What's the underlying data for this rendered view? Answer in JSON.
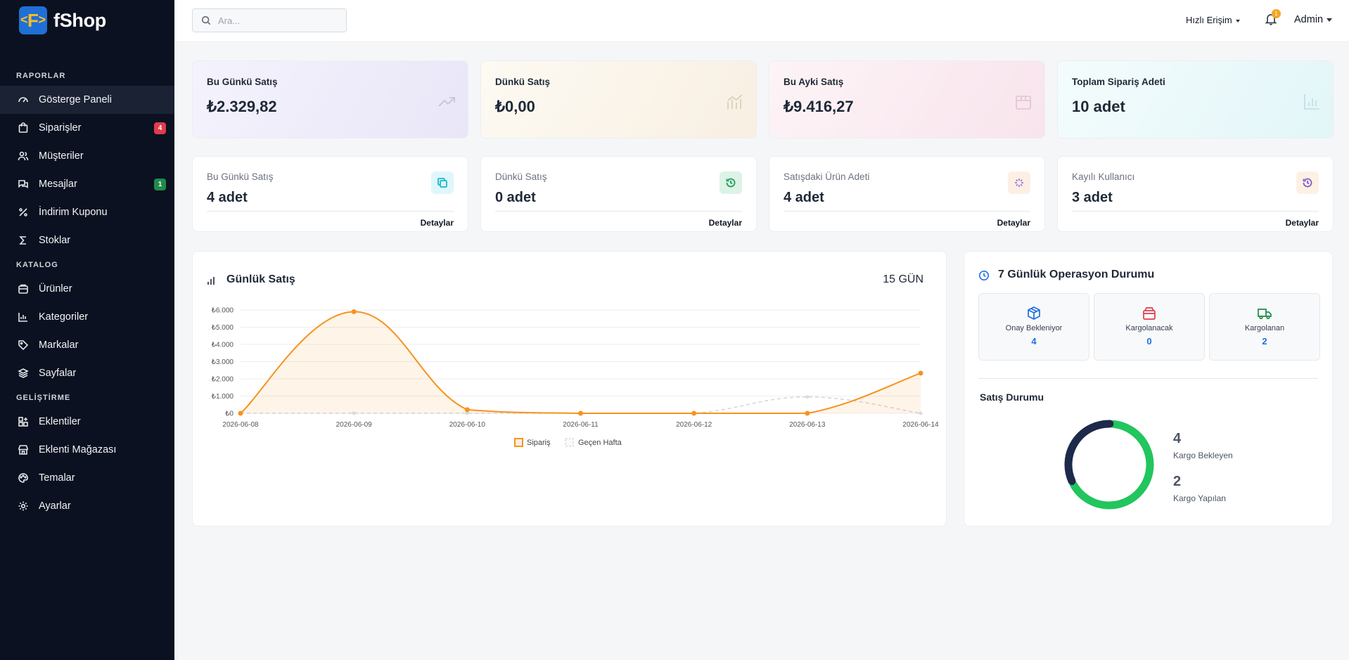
{
  "brand": {
    "name": "fShop",
    "logo_letter": "F"
  },
  "sidebar": {
    "sections": [
      {
        "label": "RAPORLAR"
      },
      {
        "label": "KATALOG"
      },
      {
        "label": "GELİŞTİRME"
      }
    ],
    "items": [
      {
        "label": "Gösterge Paneli",
        "icon": "dashboard-icon",
        "active": true
      },
      {
        "label": "Siparişler",
        "icon": "shopping-bag-icon",
        "badge": "4",
        "badge_color": "#e03b4d"
      },
      {
        "label": "Müşteriler",
        "icon": "users-icon"
      },
      {
        "label": "Mesajlar",
        "icon": "messages-icon",
        "badge": "1",
        "badge_color": "#1f8a4c"
      },
      {
        "label": "İndirim Kuponu",
        "icon": "percent-icon"
      },
      {
        "label": "Stoklar",
        "icon": "sigma-icon"
      },
      {
        "label": "Ürünler",
        "icon": "box-icon"
      },
      {
        "label": "Kategoriler",
        "icon": "bar-chart-icon"
      },
      {
        "label": "Markalar",
        "icon": "tag-icon"
      },
      {
        "label": "Sayfalar",
        "icon": "layers-icon"
      },
      {
        "label": "Eklentiler",
        "icon": "grid-plus-icon"
      },
      {
        "label": "Eklenti Mağazası",
        "icon": "store-icon"
      },
      {
        "label": "Temalar",
        "icon": "palette-icon"
      },
      {
        "label": "Ayarlar",
        "icon": "gear-icon"
      }
    ]
  },
  "topbar": {
    "search_placeholder": "Ara...",
    "quick_access": "Hızlı Erişim",
    "notification_count": "1",
    "user": "Admin"
  },
  "summary_cards": [
    {
      "label": "Bu Günkü Satış",
      "value": "₺2.329,82",
      "icon": "trend-up-icon"
    },
    {
      "label": "Dünkü Satış",
      "value": "₺0,00",
      "icon": "chart-line-icon"
    },
    {
      "label": "Bu Ayki Satış",
      "value": "₺9.416,27",
      "icon": "package-icon"
    },
    {
      "label": "Toplam Sipariş Adeti",
      "value": "10 adet",
      "icon": "bar-chart-icon"
    }
  ],
  "count_cards": [
    {
      "label": "Bu Günkü Satış",
      "value": "4 adet",
      "link": "Detaylar",
      "icon": "copy-icon"
    },
    {
      "label": "Dünkü Satış",
      "value": "0 adet",
      "link": "Detaylar",
      "icon": "history-icon"
    },
    {
      "label": "Satışdaki Ürün Adeti",
      "value": "4 adet",
      "link": "Detaylar",
      "icon": "loader-icon"
    },
    {
      "label": "Kayılı Kullanıcı",
      "value": "3 adet",
      "link": "Detaylar",
      "icon": "history-icon"
    }
  ],
  "daily_chart": {
    "title": "Günlük Satış",
    "range": "15 GÜN"
  },
  "chart_data": {
    "type": "area",
    "x": [
      "2026-06-08",
      "2026-06-09",
      "2026-06-10",
      "2026-06-11",
      "2026-06-12",
      "2026-06-13",
      "2026-06-14"
    ],
    "y_ticks": [
      "₺0",
      "₺1.000",
      "₺2.000",
      "₺3.000",
      "₺4.000",
      "₺5.000",
      "₺6.000"
    ],
    "ylim": [
      0,
      6000
    ],
    "series": [
      {
        "name": "Sipariş",
        "color": "#f7931e",
        "values": [
          0,
          5900,
          210,
          0,
          0,
          0,
          2330
        ]
      },
      {
        "name": "Geçen Hafta",
        "color": "#d1d5db",
        "values": [
          0,
          0,
          0,
          0,
          0,
          950,
          0
        ]
      }
    ],
    "legend": "bottom"
  },
  "operations": {
    "title": "7 Günlük Operasyon Durumu",
    "boxes": [
      {
        "label": "Onay Bekleniyor",
        "value": "4",
        "icon": "cube-icon",
        "color": "#1d6fe0"
      },
      {
        "label": "Kargolanacak",
        "value": "0",
        "icon": "package-icon",
        "color": "#e03b4d"
      },
      {
        "label": "Kargolanan",
        "value": "2",
        "icon": "truck-icon",
        "color": "#1f8a4c"
      }
    ]
  },
  "sales_status": {
    "title": "Satış Durumu",
    "items": [
      {
        "value": "4",
        "label": "Kargo Bekleyen",
        "color": "#22c55e"
      },
      {
        "value": "2",
        "label": "Kargo Yapılan",
        "color": "#1e2a4a"
      }
    ]
  }
}
